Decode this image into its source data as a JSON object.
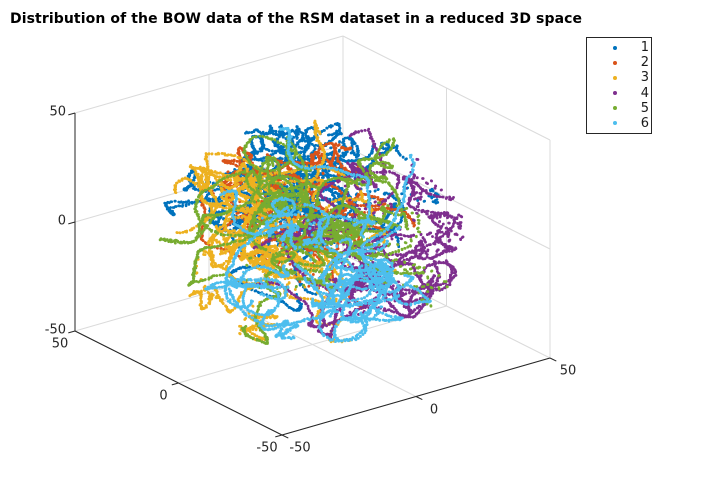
{
  "chart_data": {
    "type": "scatter",
    "subtype": "scatter3d",
    "title": "Distribution of the BOW data of the RSM dataset in a reduced 3D space",
    "axes": {
      "x": {
        "ticks": [
          -50,
          0,
          50
        ],
        "lim": [
          -50,
          50
        ]
      },
      "y": {
        "ticks": [
          -50,
          0,
          50
        ],
        "lim": [
          -50,
          50
        ]
      },
      "z": {
        "ticks": [
          -50,
          0,
          50
        ],
        "lim": [
          -50,
          50
        ]
      },
      "grid": true,
      "background": "#ffffff"
    },
    "view": {
      "azimuth_deg": -37.5,
      "elevation_deg": 30
    },
    "legend": {
      "position": "top-right",
      "entries": [
        "1",
        "2",
        "3",
        "4",
        "5",
        "6"
      ]
    },
    "point_cloud": {
      "shape": "sphere",
      "bound_radius": 45,
      "start_radius": 41,
      "seed": 1337,
      "step": 1.0,
      "jitter": 0.5,
      "dot_radius_px": 1.4,
      "sparse_fraction": 0.15
    },
    "series": [
      {
        "label": "1",
        "color": "#0072BD",
        "filaments": 34,
        "center": [
          4,
          8,
          20
        ],
        "spread": 28,
        "min_steps": 22,
        "max_steps": 115
      },
      {
        "label": "2",
        "color": "#D95319",
        "filaments": 24,
        "center": [
          -6,
          6,
          16
        ],
        "spread": 25,
        "min_steps": 20,
        "max_steps": 95
      },
      {
        "label": "3",
        "color": "#EDB120",
        "filaments": 30,
        "center": [
          -14,
          12,
          -6
        ],
        "spread": 28,
        "min_steps": 20,
        "max_steps": 100
      },
      {
        "label": "4",
        "color": "#7E2F8E",
        "filaments": 30,
        "center": [
          20,
          -8,
          -4
        ],
        "spread": 27,
        "min_steps": 20,
        "max_steps": 100
      },
      {
        "label": "5",
        "color": "#77AC30",
        "filaments": 32,
        "center": [
          2,
          -2,
          4
        ],
        "spread": 28,
        "min_steps": 20,
        "max_steps": 105
      },
      {
        "label": "6",
        "color": "#4DBEEE",
        "filaments": 28,
        "center": [
          0,
          -4,
          -16
        ],
        "spread": 28,
        "min_steps": 20,
        "max_steps": 100
      }
    ]
  },
  "colors": {
    "axis_line": "#262626",
    "grid_line": "#dbdbdb",
    "tick_label": "#262626",
    "title_text": "#000000",
    "legend_border": "#262626",
    "background": "#ffffff"
  }
}
